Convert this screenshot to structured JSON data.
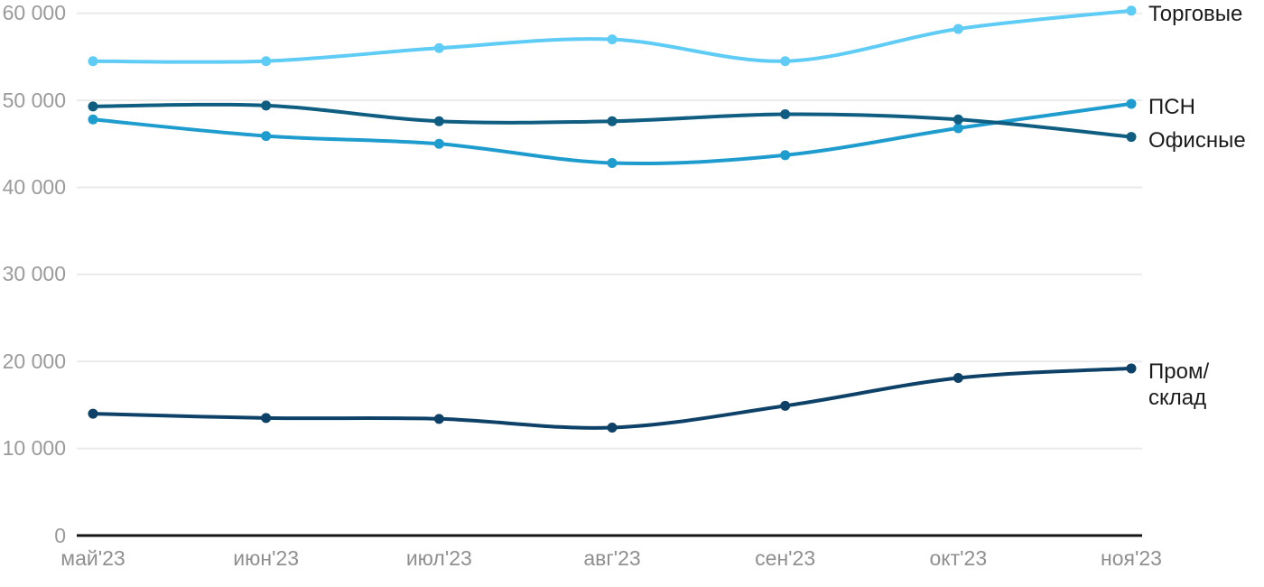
{
  "chart_data": {
    "type": "line",
    "title": "",
    "xlabel": "",
    "ylabel": "",
    "grid": true,
    "legend_position": "right-of-line-end",
    "categories": [
      "май'23",
      "июн'23",
      "июл'23",
      "авг'23",
      "сен'23",
      "окт'23",
      "ноя'23"
    ],
    "ylim": [
      0,
      62000
    ],
    "y_axis": {
      "ticks": [
        {
          "value": 0,
          "label": "0"
        },
        {
          "value": 10000,
          "label": "10 000"
        },
        {
          "value": 20000,
          "label": "20 000"
        },
        {
          "value": 30000,
          "label": "30 000"
        },
        {
          "value": 40000,
          "label": "40 000"
        },
        {
          "value": 50000,
          "label": "50 000"
        },
        {
          "value": 60000,
          "label": "60 000"
        }
      ]
    },
    "series": [
      {
        "name": "Торговые",
        "label_lines": [
          "Торговые"
        ],
        "color": "#5FCCF5",
        "values": [
          54500,
          54500,
          56000,
          57000,
          54500,
          58200,
          60300
        ]
      },
      {
        "name": "ПСН",
        "label_lines": [
          "ПСН"
        ],
        "color": "#1E9CCE",
        "values": [
          47800,
          45900,
          45000,
          42800,
          43700,
          46800,
          49600
        ]
      },
      {
        "name": "Офисные",
        "label_lines": [
          "Офисные"
        ],
        "color": "#0F5E82",
        "values": [
          49300,
          49400,
          47600,
          47600,
          48400,
          47800,
          45800
        ]
      },
      {
        "name": "Пром/склад",
        "label_lines": [
          "Пром/",
          "склад"
        ],
        "color": "#0D4167",
        "values": [
          14000,
          13500,
          13400,
          12400,
          14900,
          18100,
          19200
        ]
      }
    ],
    "colors": {
      "grid": "#EAEAEA",
      "axis": "#151515",
      "y_tick_label": "#9A9A9A",
      "x_tick_label": "#8F8F8F",
      "series_label": "#1B1B1B",
      "background": "#FFFFFF"
    }
  }
}
